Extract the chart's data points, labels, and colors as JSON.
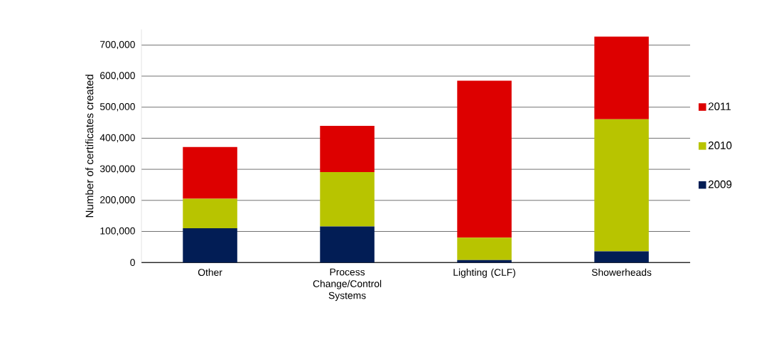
{
  "chart_data": {
    "type": "bar",
    "stacked": true,
    "ylabel": "Number of certificates created",
    "categories": [
      "Other",
      "Process Change/Control Systems",
      "Lighting (CLF)",
      "Showerheads"
    ],
    "series": [
      {
        "name": "2009",
        "color": "#021d55",
        "values": [
          110000,
          116000,
          8000,
          36000
        ]
      },
      {
        "name": "2010",
        "color": "#b8c400",
        "values": [
          95000,
          175000,
          72000,
          425000
        ]
      },
      {
        "name": "2011",
        "color": "#dd0000",
        "values": [
          167000,
          149000,
          505000,
          266000
        ]
      }
    ],
    "ylim": [
      0,
      750000
    ],
    "yticks": [
      0,
      {
        "value": 100000,
        "label": "100,000"
      },
      {
        "value": 200000,
        "label": "200,000"
      },
      {
        "value": 300000,
        "label": "300,000"
      },
      {
        "value": 400000,
        "label": "400,000"
      },
      {
        "value": 500000,
        "label": "500,000"
      },
      {
        "value": 600000,
        "label": "600,000"
      },
      {
        "value": 700000,
        "label": "700,000"
      }
    ],
    "grid": "y",
    "legend": "right"
  }
}
